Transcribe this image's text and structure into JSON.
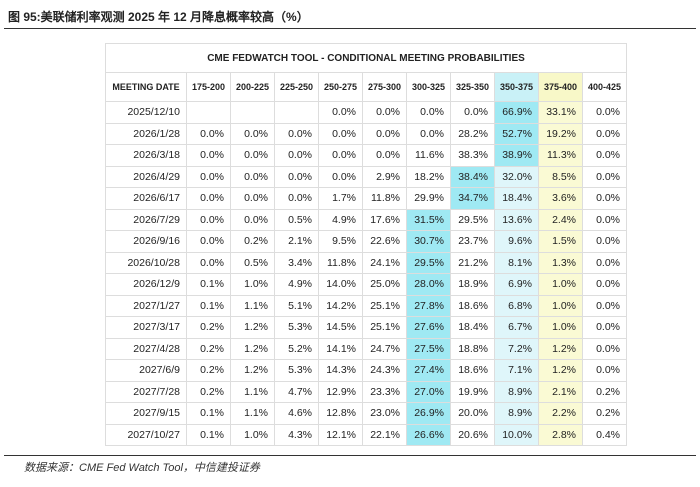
{
  "header": {
    "title": "图 95:美联储利率观测 2025 年 12 月降息概率较高（%）"
  },
  "table": {
    "caption": "CME FEDWATCH TOOL - CONDITIONAL MEETING PROBABILITIES",
    "columns": [
      "MEETING DATE",
      "175-200",
      "200-225",
      "225-250",
      "250-275",
      "275-300",
      "300-325",
      "325-350",
      "350-375",
      "375-400",
      "400-425"
    ],
    "rows": [
      [
        "2025/12/10",
        null,
        null,
        null,
        "0.0%",
        "0.0%",
        "0.0%",
        "0.0%",
        "66.9%",
        "33.1%",
        "0.0%"
      ],
      [
        "2026/1/28",
        "0.0%",
        "0.0%",
        "0.0%",
        "0.0%",
        "0.0%",
        "0.0%",
        "28.2%",
        "52.7%",
        "19.2%",
        "0.0%"
      ],
      [
        "2026/3/18",
        "0.0%",
        "0.0%",
        "0.0%",
        "0.0%",
        "0.0%",
        "11.6%",
        "38.3%",
        "38.9%",
        "11.3%",
        "0.0%"
      ],
      [
        "2026/4/29",
        "0.0%",
        "0.0%",
        "0.0%",
        "0.0%",
        "2.9%",
        "18.2%",
        "38.4%",
        "32.0%",
        "8.5%",
        "0.0%"
      ],
      [
        "2026/6/17",
        "0.0%",
        "0.0%",
        "0.0%",
        "1.7%",
        "11.8%",
        "29.9%",
        "34.7%",
        "18.4%",
        "3.6%",
        "0.0%"
      ],
      [
        "2026/7/29",
        "0.0%",
        "0.0%",
        "0.5%",
        "4.9%",
        "17.6%",
        "31.5%",
        "29.5%",
        "13.6%",
        "2.4%",
        "0.0%"
      ],
      [
        "2026/9/16",
        "0.0%",
        "0.2%",
        "2.1%",
        "9.5%",
        "22.6%",
        "30.7%",
        "23.7%",
        "9.6%",
        "1.5%",
        "0.0%"
      ],
      [
        "2026/10/28",
        "0.0%",
        "0.5%",
        "3.4%",
        "11.8%",
        "24.1%",
        "29.5%",
        "21.2%",
        "8.1%",
        "1.3%",
        "0.0%"
      ],
      [
        "2026/12/9",
        "0.1%",
        "1.0%",
        "4.9%",
        "14.0%",
        "25.0%",
        "28.0%",
        "18.9%",
        "6.9%",
        "1.0%",
        "0.0%"
      ],
      [
        "2027/1/27",
        "0.1%",
        "1.1%",
        "5.1%",
        "14.2%",
        "25.1%",
        "27.8%",
        "18.6%",
        "6.8%",
        "1.0%",
        "0.0%"
      ],
      [
        "2027/3/17",
        "0.2%",
        "1.2%",
        "5.3%",
        "14.5%",
        "25.1%",
        "27.6%",
        "18.4%",
        "6.7%",
        "1.0%",
        "0.0%"
      ],
      [
        "2027/4/28",
        "0.2%",
        "1.2%",
        "5.2%",
        "14.1%",
        "24.7%",
        "27.5%",
        "18.8%",
        "7.2%",
        "1.2%",
        "0.0%"
      ],
      [
        "2027/6/9",
        "0.2%",
        "1.2%",
        "5.3%",
        "14.3%",
        "24.3%",
        "27.4%",
        "18.6%",
        "7.1%",
        "1.2%",
        "0.0%"
      ],
      [
        "2027/7/28",
        "0.2%",
        "1.1%",
        "4.7%",
        "12.9%",
        "23.3%",
        "27.0%",
        "19.9%",
        "8.9%",
        "2.1%",
        "0.2%"
      ],
      [
        "2027/9/15",
        "0.1%",
        "1.1%",
        "4.6%",
        "12.8%",
        "23.0%",
        "26.9%",
        "20.0%",
        "8.9%",
        "2.2%",
        "0.2%"
      ],
      [
        "2027/10/27",
        "0.1%",
        "1.0%",
        "4.3%",
        "12.1%",
        "22.1%",
        "26.6%",
        "20.6%",
        "10.0%",
        "2.8%",
        "0.4%"
      ]
    ]
  },
  "footer": {
    "source": "数据来源：CME Fed Watch Tool，中信建投证券"
  }
}
